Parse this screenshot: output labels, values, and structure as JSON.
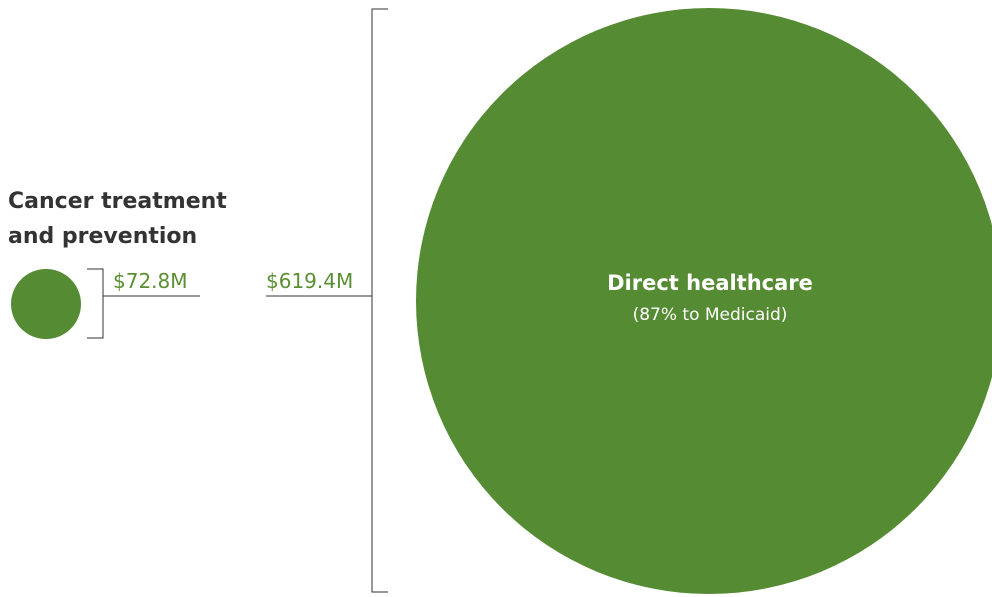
{
  "chart_data": {
    "type": "bubble",
    "items": [
      {
        "name_lines": [
          "Cancer treatment",
          "and prevention"
        ],
        "value": 72.8,
        "value_label": "$72.8M"
      },
      {
        "name": "Direct healthcare",
        "note": "(87% to Medicaid)",
        "value": 619.4,
        "value_label": "$619.4M"
      }
    ]
  },
  "colors": {
    "bubble": "#558b33",
    "label": "#5a8f32",
    "line": "#333333",
    "inner_text": "#ffffff"
  }
}
